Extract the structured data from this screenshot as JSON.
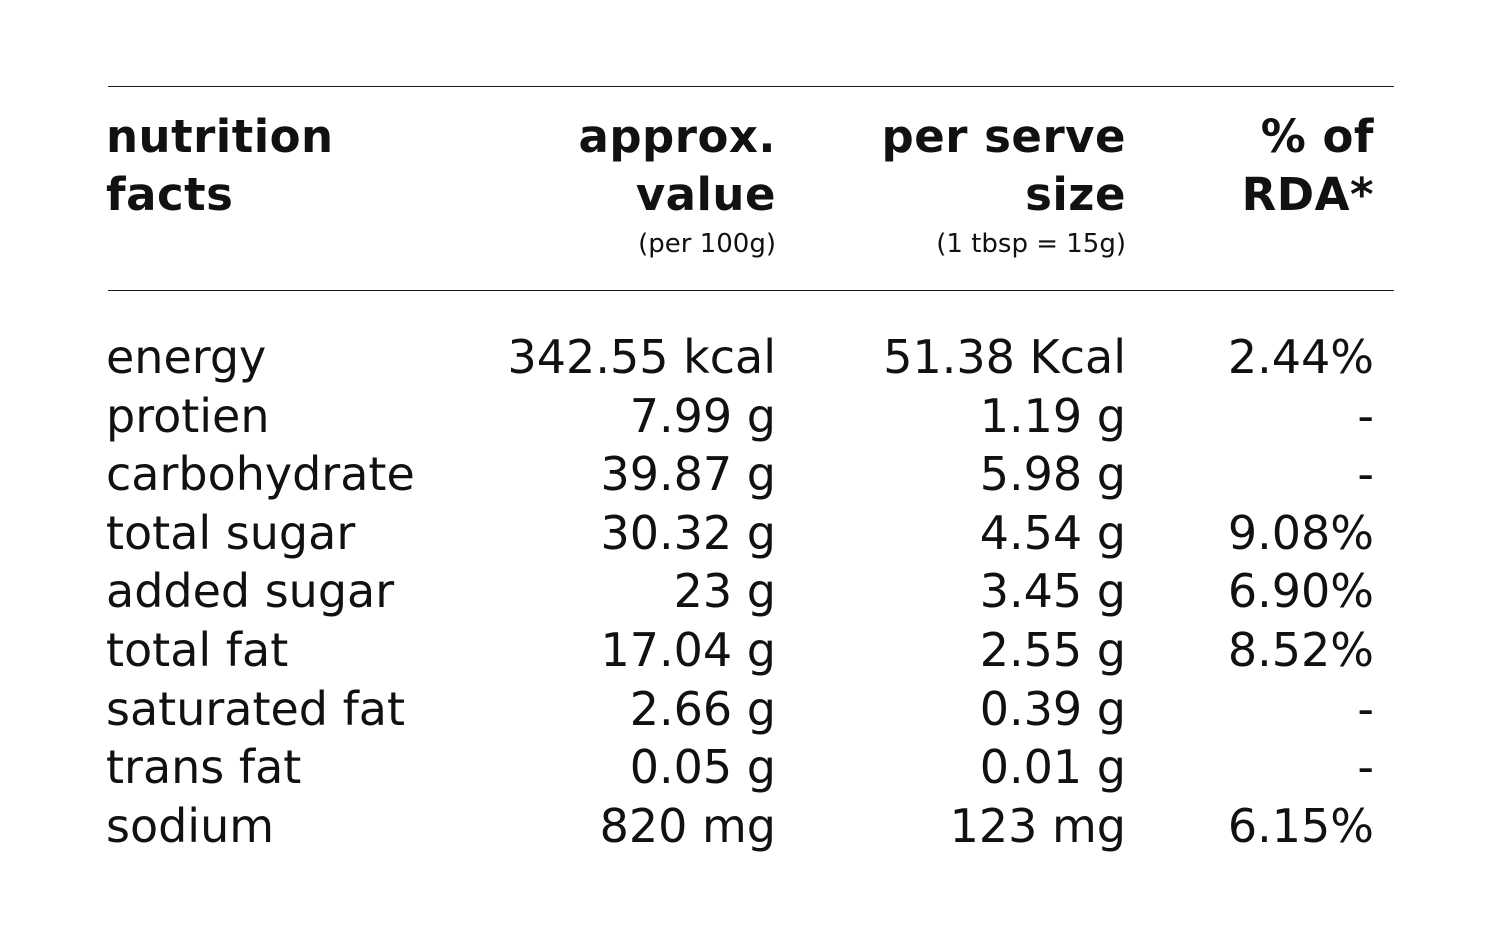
{
  "header": {
    "col1_line1": "nutrition",
    "col1_line2": "facts",
    "col2_line1": "approx.",
    "col2_line2": "value",
    "col2_sub": "(per 100g)",
    "col3_line1": "per serve",
    "col3_line2": "size",
    "col3_sub": "(1 tbsp = 15g)",
    "col4_line1": "% of",
    "col4_line2": "RDA*"
  },
  "rows": [
    {
      "name": "energy",
      "per100": "342.55 kcal",
      "perServe": "51.38 Kcal",
      "rda": "2.44%"
    },
    {
      "name": "protien",
      "per100": "7.99 g",
      "perServe": "1.19 g",
      "rda": "-"
    },
    {
      "name": "carbohydrate",
      "per100": "39.87 g",
      "perServe": "5.98 g",
      "rda": "-"
    },
    {
      "name": "total sugar",
      "per100": "30.32 g",
      "perServe": "4.54 g",
      "rda": "9.08%"
    },
    {
      "name": "added sugar",
      "per100": "23 g",
      "perServe": "3.45 g",
      "rda": "6.90%"
    },
    {
      "name": "total fat",
      "per100": "17.04 g",
      "perServe": "2.55 g",
      "rda": "8.52%"
    },
    {
      "name": "saturated fat",
      "per100": "2.66 g",
      "perServe": "0.39 g",
      "rda": "-"
    },
    {
      "name": "trans fat",
      "per100": "0.05 g",
      "perServe": "0.01 g",
      "rda": "-"
    },
    {
      "name": "sodium",
      "per100": "820 mg",
      "perServe": "123 mg",
      "rda": "6.15%"
    }
  ]
}
